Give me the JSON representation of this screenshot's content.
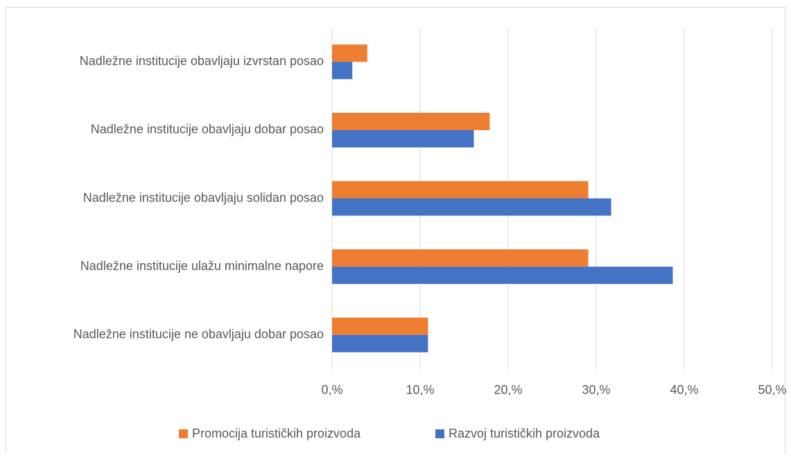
{
  "chart_data": {
    "type": "hbar",
    "categories": [
      "Nadležne institucije obavljaju izvrstan posao",
      "Nadležne institucije obavljaju dobar posao",
      "Nadležne institucije obavljaju solidan posao",
      "Nadležne institucije ulažu minimalne napore",
      "Nadležne institucije ne obavljaju dobar posao"
    ],
    "series": [
      {
        "name": "Promocija turističkih proizvoda",
        "color": "#ed7d31",
        "values": [
          4.0,
          17.9,
          29.1,
          29.1,
          10.9
        ]
      },
      {
        "name": "Razvoj turističkih proizvoda",
        "color": "#4472c4",
        "values": [
          2.3,
          16.1,
          31.7,
          38.7,
          10.9
        ]
      }
    ],
    "xlim": [
      0,
      50
    ],
    "xticks": [
      {
        "value": 0,
        "label": "0,%"
      },
      {
        "value": 10,
        "label": "10,%"
      },
      {
        "value": 20,
        "label": "20,%"
      },
      {
        "value": 30,
        "label": "30,%"
      },
      {
        "value": 40,
        "label": "40,%"
      },
      {
        "value": 50,
        "label": "50,%"
      }
    ],
    "grid": true,
    "legend": "bottom"
  }
}
